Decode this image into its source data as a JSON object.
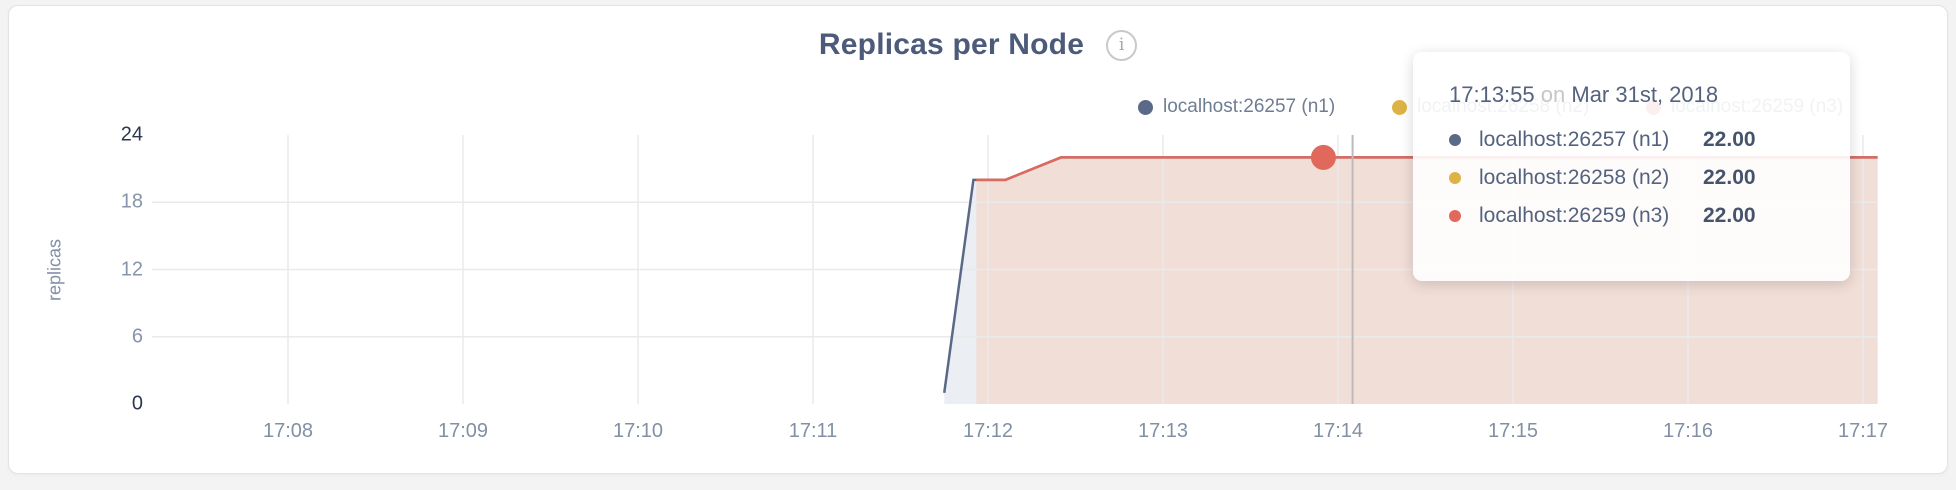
{
  "header": {
    "title": "Replicas per Node",
    "info_glyph": "i"
  },
  "legend": {
    "items": [
      {
        "label": "localhost:26257 (n1)",
        "color": "#5a6987"
      },
      {
        "label": "localhost:26258 (n2)",
        "color": "#ddb345"
      },
      {
        "label": "localhost:26259 (n3)",
        "color": "#e0695c"
      }
    ]
  },
  "tooltip": {
    "time": "17:13:55",
    "conjunction": "on",
    "date": "Mar 31st, 2018",
    "rows": [
      {
        "label": "localhost:26257 (n1)",
        "value": "22.00",
        "color": "#5a6987"
      },
      {
        "label": "localhost:26258 (n2)",
        "value": "22.00",
        "color": "#ddb345"
      },
      {
        "label": "localhost:26259 (n3)",
        "value": "22.00",
        "color": "#e0695c"
      }
    ]
  },
  "chart_data": {
    "type": "area",
    "title": "Replicas per Node",
    "xlabel": "",
    "ylabel": "replicas",
    "ylim": [
      0,
      24
    ],
    "y_ticks": [
      24,
      18,
      12,
      6,
      0
    ],
    "x_ticks": [
      "17:08",
      "17:09",
      "17:10",
      "17:11",
      "17:12",
      "17:13",
      "17:14",
      "17:15",
      "17:16",
      "17:17"
    ],
    "grid": true,
    "legend_position": "top-right",
    "series": [
      {
        "name": "localhost:26257 (n1)",
        "color": "#5a6987",
        "fill": "#ebeef3",
        "line_visible": true,
        "points": [
          [
            "17:11:45",
            1
          ],
          [
            "17:11:55",
            20
          ],
          [
            "17:12:06",
            20
          ],
          [
            "17:12:25",
            22
          ],
          [
            "17:17:05",
            22
          ]
        ]
      },
      {
        "name": "localhost:26258 (n2)",
        "color": "#ddb345",
        "fill": "#f6eed9",
        "line_visible": false,
        "points": [
          [
            "17:11:56",
            20
          ],
          [
            "17:12:06",
            20
          ],
          [
            "17:12:25",
            22
          ],
          [
            "17:17:05",
            22
          ]
        ]
      },
      {
        "name": "localhost:26259 (n3)",
        "color": "#e0695c",
        "fill": "#f1ded7",
        "line_visible": true,
        "points": [
          [
            "17:11:56",
            20
          ],
          [
            "17:12:06",
            20
          ],
          [
            "17:12:25",
            22
          ],
          [
            "17:17:05",
            22
          ]
        ]
      }
    ],
    "hover": {
      "crosshair_time": "17:14:05",
      "point": {
        "series": "localhost:26259 (n3)",
        "time": "17:13:55",
        "value": 22
      }
    }
  }
}
